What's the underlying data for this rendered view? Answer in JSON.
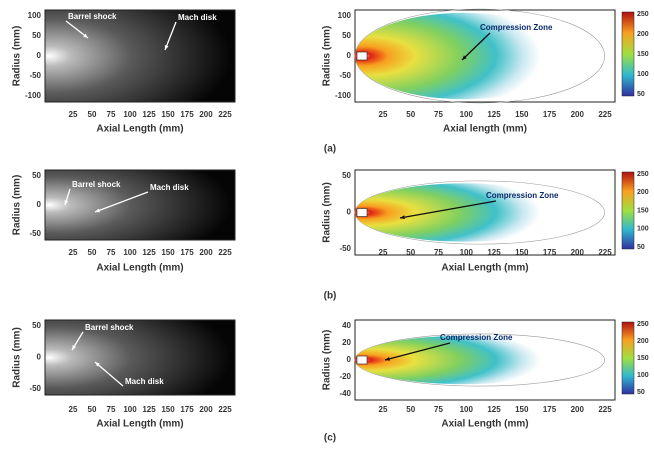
{
  "panels": [
    {
      "label": "(a)",
      "left": {
        "y_label": "Radius (mm)",
        "x_label": "Axial Length (mm)",
        "yticks": [
          100,
          50,
          0,
          -50,
          -100
        ],
        "xticks": [
          25,
          50,
          75,
          100,
          125,
          150,
          175,
          200,
          225
        ],
        "annotations": [
          "Barrel shock",
          "Mach disk"
        ]
      },
      "right": {
        "y_label": "Radius (mm)",
        "x_label": "Axial length (mm)",
        "yticks": [
          100,
          50,
          0,
          -50,
          -100
        ],
        "xticks": [
          25,
          50,
          75,
          100,
          125,
          150,
          175,
          200,
          225
        ],
        "annotation": "Compression Zone",
        "colorbar_ticks": [
          250,
          200,
          150,
          100,
          50
        ]
      }
    },
    {
      "label": "(b)",
      "left": {
        "y_label": "Radius (mm)",
        "x_label": "Axial Length (mm)",
        "yticks": [
          50,
          0,
          -50
        ],
        "xticks": [
          25,
          50,
          75,
          100,
          125,
          150,
          175,
          200,
          225
        ],
        "annotations": [
          "Barrel shock",
          "Mach disk"
        ]
      },
      "right": {
        "y_label": "Radius (mm)",
        "x_label": "Axial Length (mm)",
        "yticks": [
          50,
          0,
          -50
        ],
        "xticks": [
          25,
          50,
          75,
          100,
          125,
          150,
          175,
          200,
          225
        ],
        "annotation": "Compression Zone",
        "colorbar_ticks": [
          250,
          200,
          150,
          100,
          50
        ]
      }
    },
    {
      "label": "(c)",
      "left": {
        "y_label": "Radius (mm)",
        "x_label": "Axial Length (mm)",
        "yticks": [
          50,
          0,
          -50
        ],
        "xticks": [
          25,
          50,
          75,
          100,
          125,
          150,
          175,
          200,
          225
        ],
        "annotations": [
          "Barrel shock",
          "Mach disk"
        ]
      },
      "right": {
        "y_label": "Radius (mm)",
        "x_label": "Axial Length (mm)",
        "yticks": [
          40,
          20,
          0,
          -20,
          -40
        ],
        "xticks": [
          25,
          50,
          75,
          100,
          125,
          150,
          175,
          200,
          225
        ],
        "annotation": "Compression Zone",
        "colorbar_ticks": [
          250,
          200,
          150,
          100,
          50
        ]
      }
    }
  ]
}
